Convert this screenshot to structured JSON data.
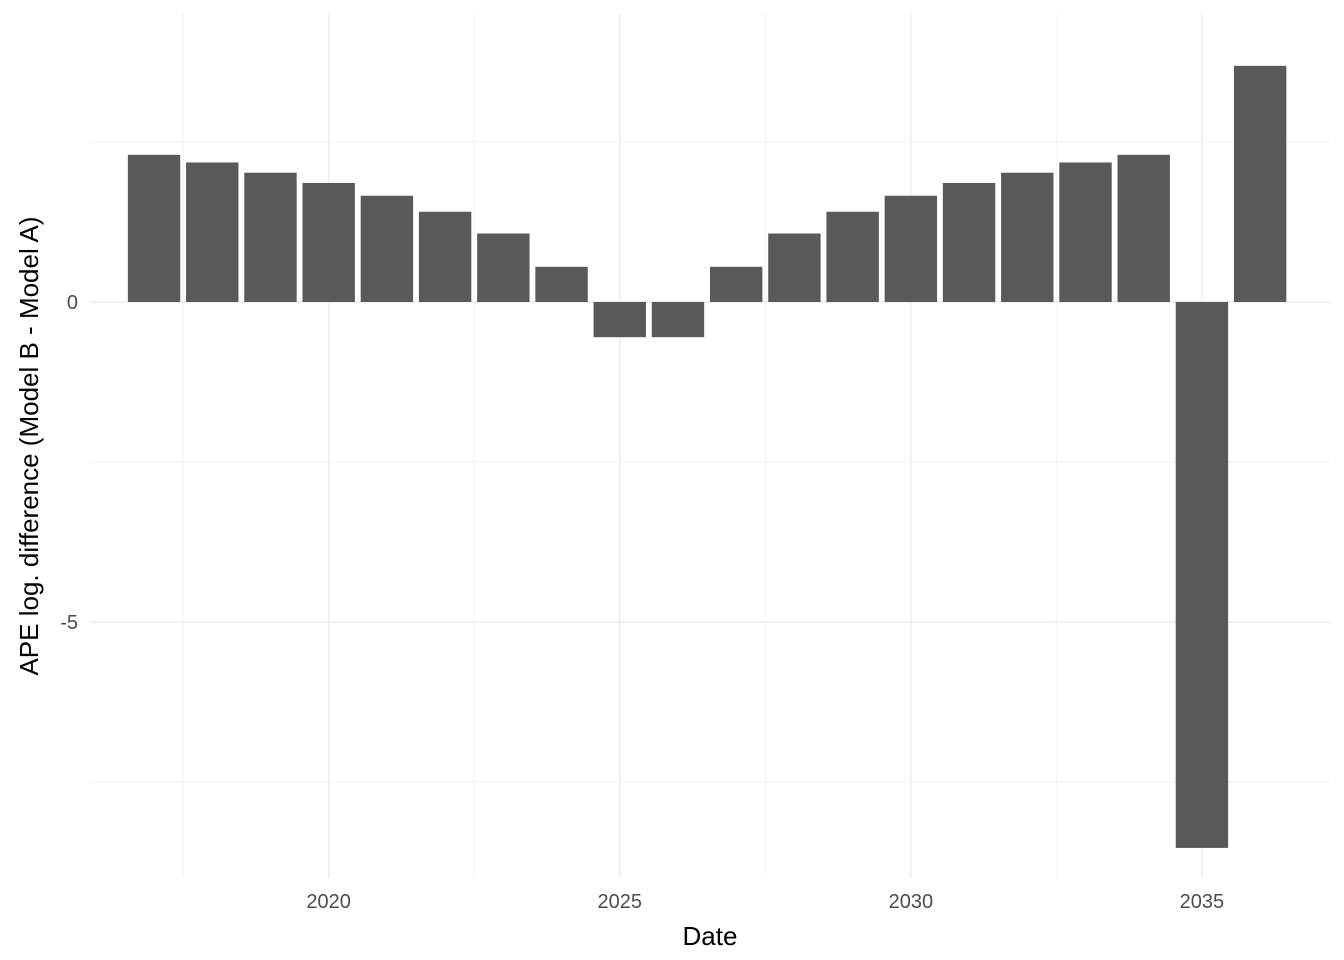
{
  "chart_data": {
    "type": "bar",
    "xlabel": "Date",
    "ylabel": "APE log. difference (Model B - Model A)",
    "x": [
      2017,
      2018,
      2019,
      2020,
      2021,
      2022,
      2023,
      2024,
      2025,
      2026,
      2027,
      2028,
      2029,
      2030,
      2031,
      2032,
      2033,
      2034,
      2035,
      2036
    ],
    "values": [
      2.3,
      2.18,
      2.02,
      1.86,
      1.66,
      1.41,
      1.07,
      0.55,
      -0.55,
      -0.55,
      0.55,
      1.07,
      1.41,
      1.66,
      1.86,
      2.02,
      2.18,
      2.3,
      -8.53,
      3.69
    ],
    "xlim": [
      2015.9,
      2037.2
    ],
    "ylim": [
      -9.0,
      4.5
    ],
    "x_ticks": [
      2020,
      2025,
      2030,
      2035
    ],
    "x_tick_labels": [
      "2020",
      "2025",
      "2030",
      "2035"
    ],
    "x_minor_ticks": [
      2017.5,
      2022.5,
      2027.5,
      2032.5
    ],
    "y_ticks": [
      0,
      -5
    ],
    "y_tick_labels": [
      "0",
      "-5"
    ],
    "y_minor_ticks": [
      2.5,
      -2.5,
      -7.5
    ],
    "bar_color": "#595959",
    "grid": true,
    "legend": "none"
  }
}
